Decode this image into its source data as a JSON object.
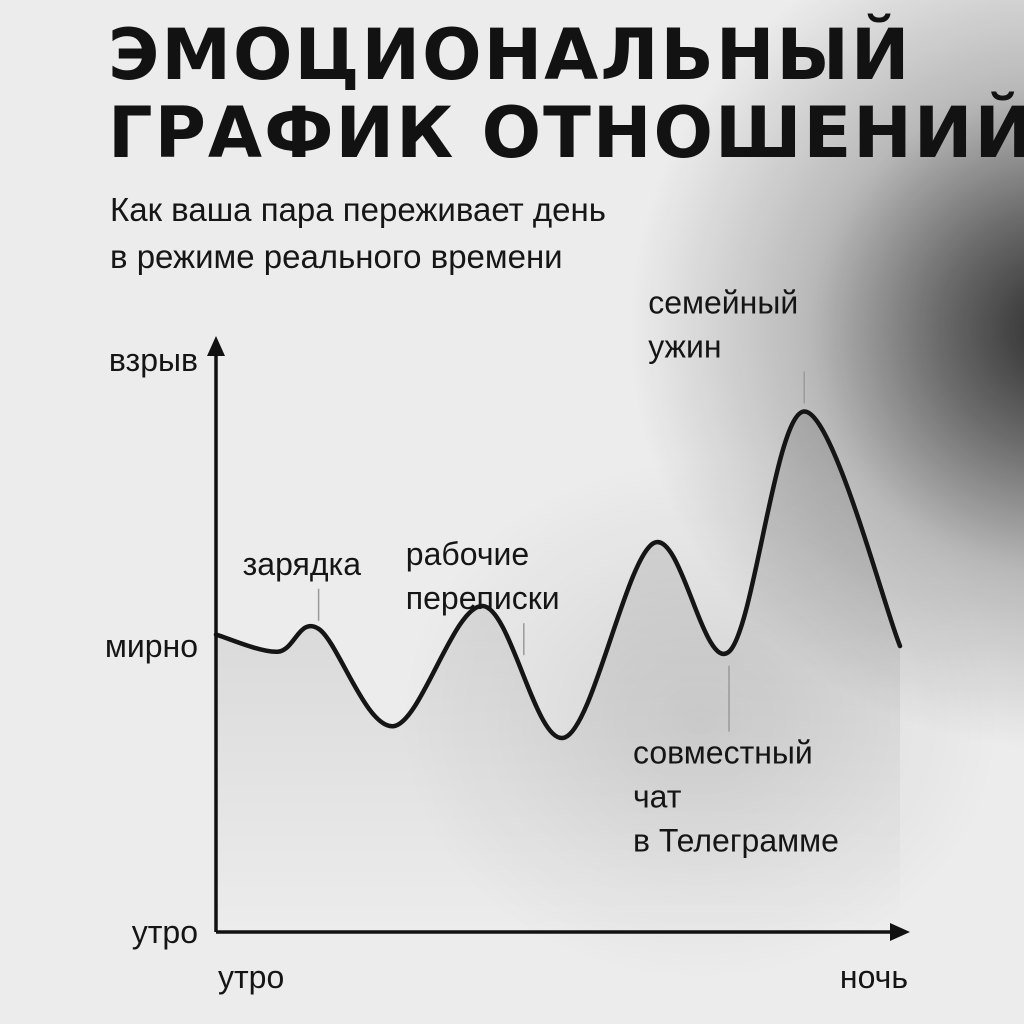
{
  "chart_data": {
    "type": "line",
    "title_lines": [
      "ЭМОЦИОНАЛЬНЫЙ",
      "ГРАФИК ОТНОШЕНИЙ"
    ],
    "subtitle_lines": [
      "Как ваша пара переживает день",
      "в режиме реального времени"
    ],
    "y_axis": {
      "tick_labels": [
        {
          "label": "утро",
          "value": 0
        },
        {
          "label": "мирно",
          "value": 50
        },
        {
          "label": "взрыв",
          "value": 100
        }
      ],
      "range": [
        0,
        100
      ]
    },
    "x_axis": {
      "start_label": "утро",
      "end_label": "ночь",
      "range": [
        0,
        100
      ]
    },
    "grid": false,
    "series": [
      {
        "points": [
          {
            "x": 0,
            "y": 52
          },
          {
            "x": 9,
            "y": 49
          },
          {
            "x": 15,
            "y": 53
          },
          {
            "x": 26,
            "y": 36
          },
          {
            "x": 39,
            "y": 57
          },
          {
            "x": 51,
            "y": 34
          },
          {
            "x": 64,
            "y": 68
          },
          {
            "x": 75,
            "y": 49
          },
          {
            "x": 86,
            "y": 91
          },
          {
            "x": 100,
            "y": 50
          }
        ]
      }
    ],
    "annotations": [
      {
        "lines": [
          "зарядка"
        ],
        "x": 15,
        "y": 53,
        "side": "above"
      },
      {
        "lines": [
          "рабочие",
          "переписки"
        ],
        "x": 45,
        "y": 47,
        "side": "above"
      },
      {
        "lines": [
          "семейный",
          "ужин"
        ],
        "x": 86,
        "y": 91,
        "side": "above"
      },
      {
        "lines": [
          "совместный",
          "чат",
          "в Телеграмме"
        ],
        "x": 75,
        "y": 49,
        "side": "below"
      }
    ]
  }
}
